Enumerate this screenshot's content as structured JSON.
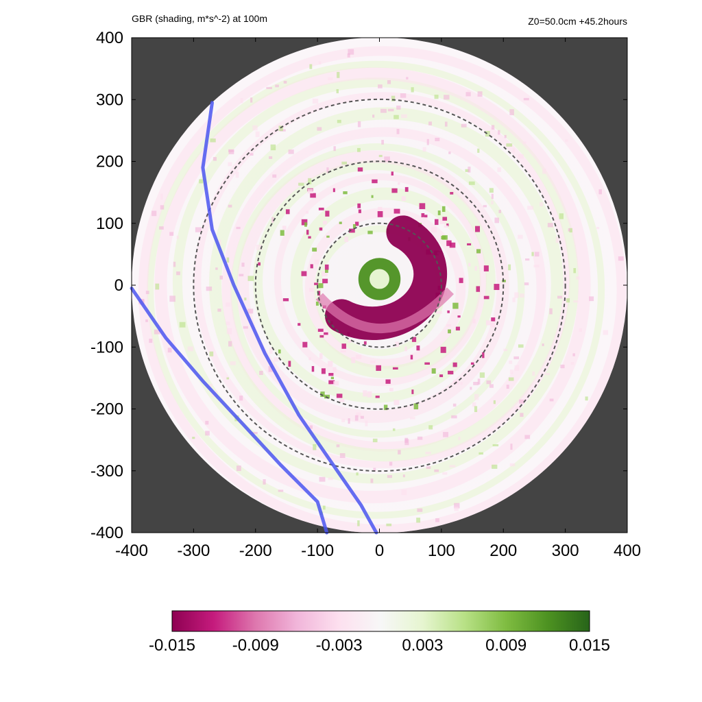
{
  "chart_data": {
    "type": "heatmap",
    "title": "GBR (shading, m*s^-2) at 100m",
    "subtitle": "Z0=50.0cm  +45.2hours",
    "xlabel": "",
    "ylabel": "",
    "xlim": [
      -400,
      400
    ],
    "ylim": [
      -400,
      400
    ],
    "x_ticks": [
      "-400",
      "-300",
      "-200",
      "-100",
      "0",
      "100",
      "200",
      "300",
      "400"
    ],
    "y_ticks": [
      "400",
      "300",
      "200",
      "100",
      "0",
      "-100",
      "-200",
      "-300",
      "-400"
    ],
    "domain_radius": 400,
    "background_color": "#444444",
    "range_rings_radius": [
      100,
      200,
      300
    ],
    "colorbar": {
      "min": -0.015,
      "max": 0.015,
      "tick_labels": [
        "-0.015",
        "-0.009",
        "-0.003",
        "0.003",
        "0.009",
        "0.015"
      ],
      "colors": [
        "#8e0152",
        "#c51b7d",
        "#de77ae",
        "#f1b6da",
        "#fde0ef",
        "#f7f7f7",
        "#e6f5d0",
        "#b8e186",
        "#7fbc41",
        "#4d9221",
        "#276419"
      ],
      "orientation": "horizontal",
      "placement": "bottom"
    },
    "features": [
      {
        "name": "strong negative spiral band around the eye",
        "sign": "negative",
        "approx_center": [
          20,
          0
        ],
        "approx_radius": [
          30,
          90
        ]
      },
      {
        "name": "positive ring inside the eyewall",
        "sign": "positive",
        "approx_center": [
          0,
          10
        ],
        "approx_radius": [
          10,
          40
        ]
      }
    ],
    "lines": [
      {
        "type": "track",
        "color": "#4a55f0",
        "points": [
          [
            -270,
            295
          ],
          [
            -285,
            190
          ],
          [
            -270,
            90
          ],
          [
            -235,
            0
          ],
          [
            -185,
            -110
          ],
          [
            -130,
            -210
          ],
          [
            -75,
            -290
          ],
          [
            -30,
            -355
          ],
          [
            -5,
            -400
          ]
        ]
      },
      {
        "type": "track",
        "color": "#4a55f0",
        "points": [
          [
            -400,
            -5
          ],
          [
            -345,
            -85
          ],
          [
            -285,
            -155
          ],
          [
            -220,
            -225
          ],
          [
            -160,
            -290
          ],
          [
            -100,
            -350
          ],
          [
            -85,
            -400
          ]
        ]
      }
    ]
  }
}
